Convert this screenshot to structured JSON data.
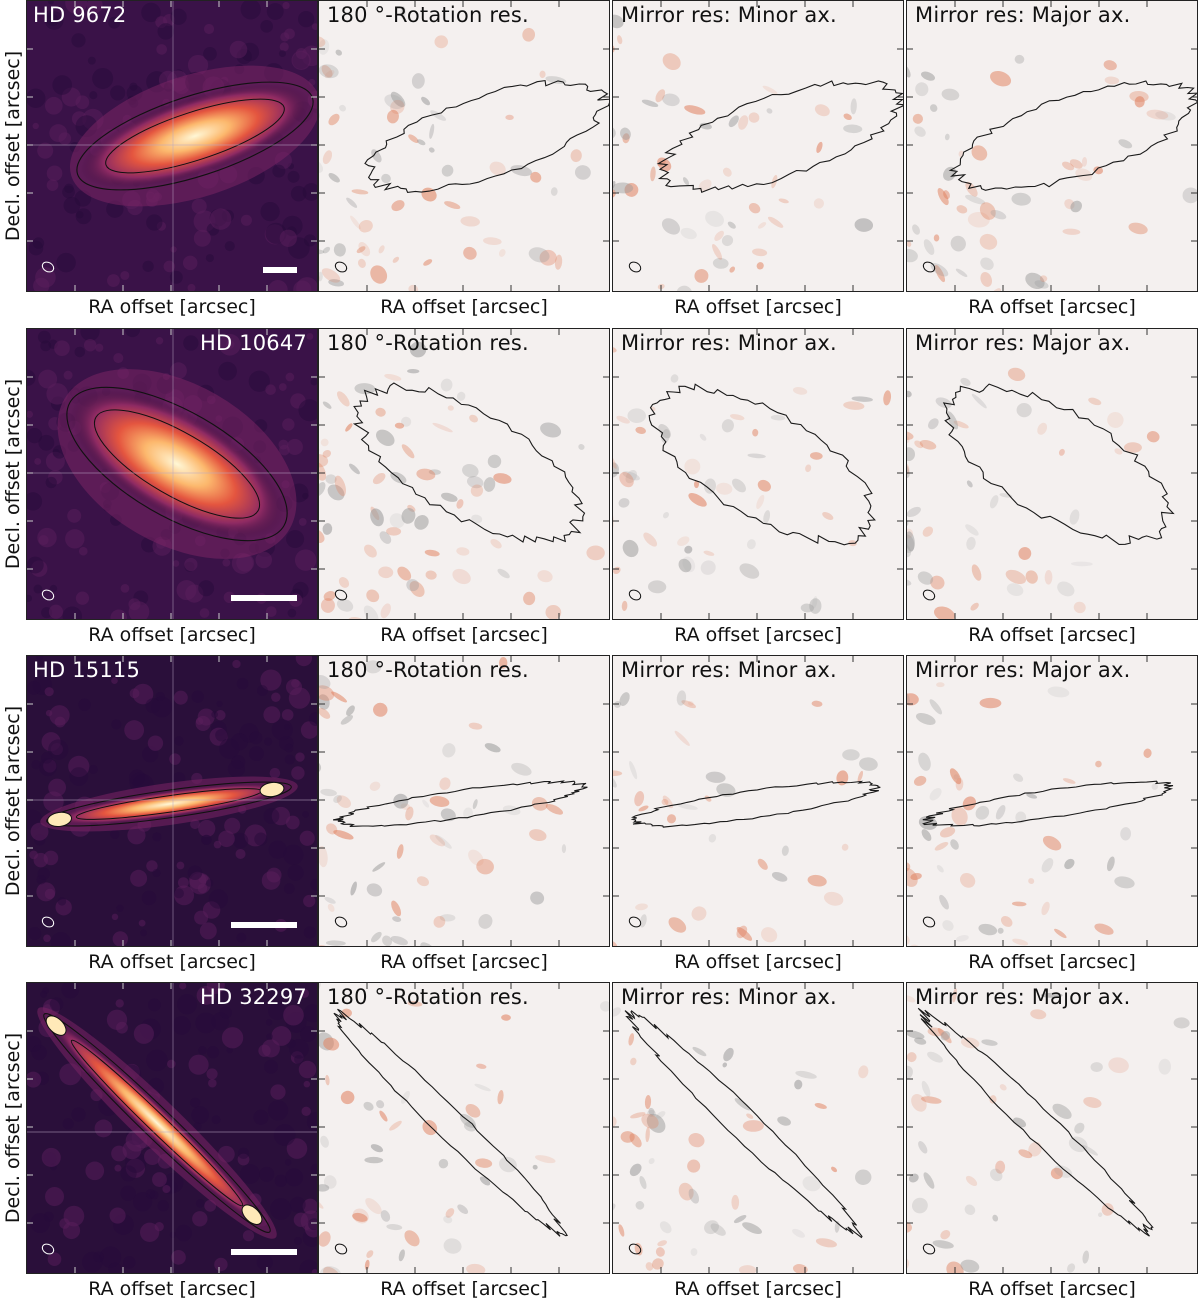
{
  "axis_labels": {
    "x": "RA offset [arcsec]",
    "y": "Decl. offset [arcsec]"
  },
  "colors": {
    "data_map_colormap": "inferno-like (dark purple to white)",
    "residual_colormap": "diverging grey-white-red"
  },
  "rows": [
    {
      "star": "HD 9672",
      "panels": [
        {
          "title": "HD 9672",
          "kind": "data"
        },
        {
          "title": "180$^\\circ$-Rotation res.",
          "display_title": "180 °-Rotation res.",
          "kind": "residual"
        },
        {
          "title": "Mirror res: Minor ax.",
          "kind": "residual"
        },
        {
          "title": "Mirror res: Major ax.",
          "kind": "residual"
        }
      ]
    },
    {
      "star": "HD 10647",
      "panels": [
        {
          "title": "HD 10647",
          "kind": "data"
        },
        {
          "display_title": "180 °-Rotation res.",
          "kind": "residual"
        },
        {
          "title": "Mirror res: Minor ax.",
          "kind": "residual"
        },
        {
          "title": "Mirror res: Major ax.",
          "kind": "residual"
        }
      ]
    },
    {
      "star": "HD 15115",
      "panels": [
        {
          "title": "HD 15115",
          "kind": "data"
        },
        {
          "display_title": "180 °-Rotation res.",
          "kind": "residual"
        },
        {
          "title": "Mirror res: Minor ax.",
          "kind": "residual"
        },
        {
          "title": "Mirror res: Major ax.",
          "kind": "residual"
        }
      ]
    },
    {
      "star": "HD 32297",
      "panels": [
        {
          "title": "HD 32297",
          "kind": "data"
        },
        {
          "display_title": "180 °-Rotation res.",
          "kind": "residual"
        },
        {
          "title": "Mirror res: Minor ax.",
          "kind": "residual"
        },
        {
          "title": "Mirror res: Major ax.",
          "kind": "residual"
        }
      ]
    }
  ]
}
